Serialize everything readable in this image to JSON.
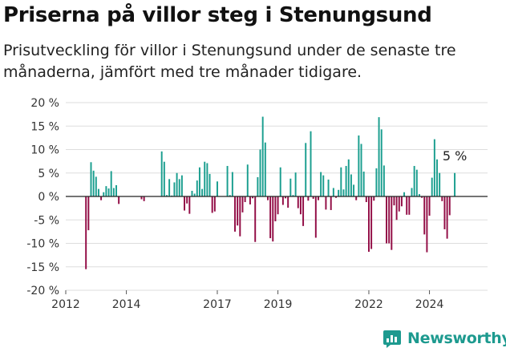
{
  "title": "Priserna på villor steg i Stenungsund",
  "subtitle": "Prisutveckling för villor i Stenungsund under de senaste tre månaderna, jämfört med tre månader tidigare.",
  "brand": "Newsworthy",
  "colors": {
    "positive": "#1a9e8f",
    "negative": "#920c45",
    "grid": "#dddddd"
  },
  "chart_data": {
    "type": "bar",
    "title": "Priserna på villor steg i Stenungsund",
    "subtitle": "Prisutveckling för villor i Stenungsund under de senaste tre månaderna, jämfört med tre månader tidigare.",
    "x_range": [
      "2012-01",
      "2025-12"
    ],
    "ylim": [
      -20,
      20
    ],
    "y_ticks": [
      -20,
      -15,
      -10,
      -5,
      0,
      5,
      10,
      15,
      20
    ],
    "y_tick_labels": [
      "-20 %",
      "-15 %",
      "-10 %",
      "-5 %",
      "0 %",
      "5 %",
      "10 %",
      "15 %",
      "20 %"
    ],
    "x_ticks": [
      2012,
      2014,
      2017,
      2019,
      2022,
      2024
    ],
    "grid": true,
    "annotation": "5 %",
    "points": [
      {
        "x": "2012-09",
        "y": -15.5
      },
      {
        "x": "2012-10",
        "y": -7.2
      },
      {
        "x": "2012-11",
        "y": 7.3
      },
      {
        "x": "2012-12",
        "y": 5.5
      },
      {
        "x": "2013-01",
        "y": 4.2
      },
      {
        "x": "2013-02",
        "y": 1.6
      },
      {
        "x": "2013-03",
        "y": -0.8
      },
      {
        "x": "2013-04",
        "y": 0.9
      },
      {
        "x": "2013-05",
        "y": 2.2
      },
      {
        "x": "2013-06",
        "y": 1.7
      },
      {
        "x": "2013-07",
        "y": 5.4
      },
      {
        "x": "2013-08",
        "y": 1.8
      },
      {
        "x": "2013-09",
        "y": 2.4
      },
      {
        "x": "2013-10",
        "y": -1.6
      },
      {
        "x": "2014-07",
        "y": -0.6
      },
      {
        "x": "2014-08",
        "y": -1.0
      },
      {
        "x": "2015-03",
        "y": 9.6
      },
      {
        "x": "2015-04",
        "y": 7.4
      },
      {
        "x": "2015-05",
        "y": 0.3
      },
      {
        "x": "2015-06",
        "y": 3.7
      },
      {
        "x": "2015-07",
        "y": 0.2
      },
      {
        "x": "2015-08",
        "y": 3.0
      },
      {
        "x": "2015-09",
        "y": 5.0
      },
      {
        "x": "2015-10",
        "y": 3.7
      },
      {
        "x": "2015-11",
        "y": 4.5
      },
      {
        "x": "2015-12",
        "y": -3.0
      },
      {
        "x": "2016-01",
        "y": -1.5
      },
      {
        "x": "2016-02",
        "y": -3.7
      },
      {
        "x": "2016-03",
        "y": 1.2
      },
      {
        "x": "2016-04",
        "y": 0.6
      },
      {
        "x": "2016-05",
        "y": 3.4
      },
      {
        "x": "2016-06",
        "y": 6.2
      },
      {
        "x": "2016-07",
        "y": 1.6
      },
      {
        "x": "2016-08",
        "y": 7.4
      },
      {
        "x": "2016-09",
        "y": 7.1
      },
      {
        "x": "2016-10",
        "y": 4.8
      },
      {
        "x": "2016-11",
        "y": -3.5
      },
      {
        "x": "2016-12",
        "y": -3.2
      },
      {
        "x": "2017-01",
        "y": 3.2
      },
      {
        "x": "2017-05",
        "y": 6.5
      },
      {
        "x": "2017-06",
        "y": 0.3
      },
      {
        "x": "2017-07",
        "y": 5.2
      },
      {
        "x": "2017-08",
        "y": -7.5
      },
      {
        "x": "2017-09",
        "y": -6.2
      },
      {
        "x": "2017-10",
        "y": -8.5
      },
      {
        "x": "2017-11",
        "y": -3.4
      },
      {
        "x": "2017-12",
        "y": -1.2
      },
      {
        "x": "2018-01",
        "y": 6.8
      },
      {
        "x": "2018-02",
        "y": -1.7
      },
      {
        "x": "2018-03",
        "y": -0.4
      },
      {
        "x": "2018-04",
        "y": -9.7
      },
      {
        "x": "2018-05",
        "y": 4.1
      },
      {
        "x": "2018-06",
        "y": 10.0
      },
      {
        "x": "2018-07",
        "y": 17.0
      },
      {
        "x": "2018-08",
        "y": 11.5
      },
      {
        "x": "2018-09",
        "y": -0.8
      },
      {
        "x": "2018-10",
        "y": -8.9
      },
      {
        "x": "2018-11",
        "y": -9.6
      },
      {
        "x": "2018-12",
        "y": -5.3
      },
      {
        "x": "2019-01",
        "y": -3.8
      },
      {
        "x": "2019-02",
        "y": 6.2
      },
      {
        "x": "2019-03",
        "y": -1.8
      },
      {
        "x": "2019-04",
        "y": -0.4
      },
      {
        "x": "2019-05",
        "y": -2.4
      },
      {
        "x": "2019-06",
        "y": 3.8
      },
      {
        "x": "2019-07",
        "y": 0.3
      },
      {
        "x": "2019-08",
        "y": 5.1
      },
      {
        "x": "2019-09",
        "y": -2.5
      },
      {
        "x": "2019-10",
        "y": -3.8
      },
      {
        "x": "2019-11",
        "y": -6.3
      },
      {
        "x": "2019-12",
        "y": 11.4
      },
      {
        "x": "2020-01",
        "y": -0.9
      },
      {
        "x": "2020-02",
        "y": 13.9
      },
      {
        "x": "2020-03",
        "y": -0.5
      },
      {
        "x": "2020-04",
        "y": -8.8
      },
      {
        "x": "2020-05",
        "y": -0.8
      },
      {
        "x": "2020-06",
        "y": 5.2
      },
      {
        "x": "2020-07",
        "y": 4.5
      },
      {
        "x": "2020-08",
        "y": -2.8
      },
      {
        "x": "2020-09",
        "y": 3.6
      },
      {
        "x": "2020-10",
        "y": -2.9
      },
      {
        "x": "2020-11",
        "y": 1.8
      },
      {
        "x": "2020-12",
        "y": -0.3
      },
      {
        "x": "2021-01",
        "y": 1.4
      },
      {
        "x": "2021-02",
        "y": 6.2
      },
      {
        "x": "2021-03",
        "y": 1.5
      },
      {
        "x": "2021-04",
        "y": 6.5
      },
      {
        "x": "2021-05",
        "y": 7.9
      },
      {
        "x": "2021-06",
        "y": 4.7
      },
      {
        "x": "2021-07",
        "y": 2.5
      },
      {
        "x": "2021-08",
        "y": -0.8
      },
      {
        "x": "2021-09",
        "y": 13.0
      },
      {
        "x": "2021-10",
        "y": 11.2
      },
      {
        "x": "2021-11",
        "y": 5.3
      },
      {
        "x": "2021-12",
        "y": -1.2
      },
      {
        "x": "2022-01",
        "y": -11.8
      },
      {
        "x": "2022-02",
        "y": -11.2
      },
      {
        "x": "2022-03",
        "y": -0.9
      },
      {
        "x": "2022-04",
        "y": 6.0
      },
      {
        "x": "2022-05",
        "y": 16.9
      },
      {
        "x": "2022-06",
        "y": 14.3
      },
      {
        "x": "2022-07",
        "y": 6.6
      },
      {
        "x": "2022-08",
        "y": -10.0
      },
      {
        "x": "2022-09",
        "y": -10.0
      },
      {
        "x": "2022-10",
        "y": -11.4
      },
      {
        "x": "2022-11",
        "y": -1.9
      },
      {
        "x": "2022-12",
        "y": -5.0
      },
      {
        "x": "2023-01",
        "y": -3.2
      },
      {
        "x": "2023-02",
        "y": -2.1
      },
      {
        "x": "2023-03",
        "y": 0.9
      },
      {
        "x": "2023-04",
        "y": -3.9
      },
      {
        "x": "2023-05",
        "y": -3.9
      },
      {
        "x": "2023-06",
        "y": 1.8
      },
      {
        "x": "2023-07",
        "y": 6.5
      },
      {
        "x": "2023-08",
        "y": 5.7
      },
      {
        "x": "2023-09",
        "y": 0.5
      },
      {
        "x": "2023-10",
        "y": -0.3
      },
      {
        "x": "2023-11",
        "y": -8.1
      },
      {
        "x": "2023-12",
        "y": -11.9
      },
      {
        "x": "2024-01",
        "y": -4.1
      },
      {
        "x": "2024-02",
        "y": 4.0
      },
      {
        "x": "2024-03",
        "y": 12.2
      },
      {
        "x": "2024-04",
        "y": 7.9
      },
      {
        "x": "2024-05",
        "y": 5.0
      },
      {
        "x": "2024-06",
        "y": -1.0
      },
      {
        "x": "2024-07",
        "y": -7.0
      },
      {
        "x": "2024-08",
        "y": -9.0
      },
      {
        "x": "2024-09",
        "y": -4.0
      },
      {
        "x": "2024-11",
        "y": 5.0
      }
    ]
  }
}
